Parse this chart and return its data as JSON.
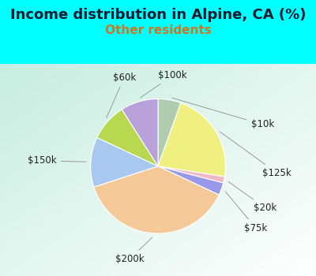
{
  "title": "Income distribution in Alpine, CA (%)",
  "subtitle": "Other residents",
  "bg_cyan": "#00FFFF",
  "bg_chart_left": "#c8e8d8",
  "bg_chart_right": "#e8f8f0",
  "segments": [
    {
      "label": "$10k",
      "value": 5.5,
      "color": "#b0ccb0"
    },
    {
      "label": "$125k",
      "value": 22.0,
      "color": "#f0f080"
    },
    {
      "label": "$20k",
      "value": 1.5,
      "color": "#f0b8c8"
    },
    {
      "label": "$75k",
      "value": 3.0,
      "color": "#9898e8"
    },
    {
      "label": "$200k",
      "value": 38.0,
      "color": "#f5c898"
    },
    {
      "label": "$150k",
      "value": 12.0,
      "color": "#a8c8f0"
    },
    {
      "label": "$60k",
      "value": 9.0,
      "color": "#b8d850"
    },
    {
      "label": "$100k",
      "value": 9.0,
      "color": "#b8a0d8"
    }
  ],
  "title_fontsize": 13,
  "subtitle_fontsize": 11,
  "subtitle_color": "#cc7722",
  "label_fontsize": 8.5,
  "label_color": "#222222"
}
